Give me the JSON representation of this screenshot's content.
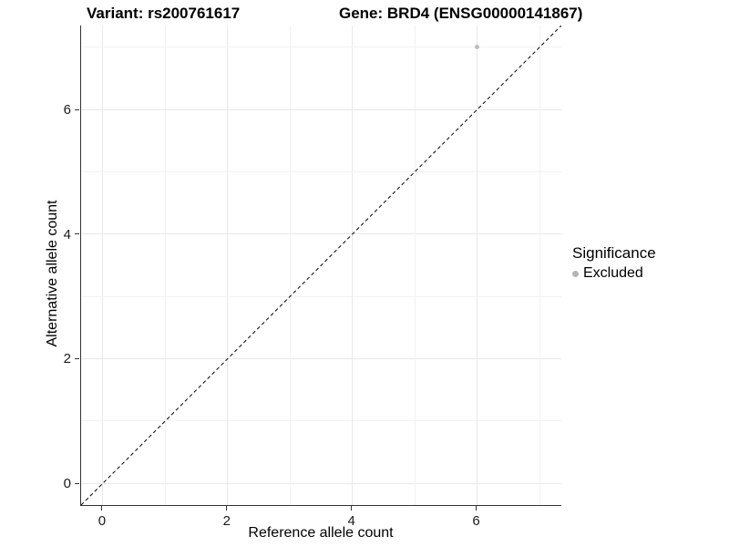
{
  "chart_data": {
    "type": "scatter",
    "title_left": "Variant: rs200761617",
    "title_right": "Gene: BRD4 (ENSG00000141867)",
    "xlabel": "Reference allele count",
    "ylabel": "Alternative allele count",
    "xlim": [
      -0.35,
      7.35
    ],
    "ylim": [
      -0.35,
      7.35
    ],
    "x_ticks": [
      0,
      2,
      4,
      6
    ],
    "y_ticks": [
      0,
      2,
      4,
      6
    ],
    "grid_values": [
      0,
      1,
      2,
      3,
      4,
      5,
      6,
      7
    ],
    "grid": "major at even integers, minor at odd integers, horizontal and vertical",
    "points": [
      {
        "x": 6,
        "y": 7,
        "series": "Excluded"
      }
    ],
    "reference_line": {
      "style": "dashed",
      "equation": "y = x",
      "color": "#000000"
    },
    "legend": {
      "title": "Significance",
      "position": "right",
      "entries": [
        {
          "label": "Excluded",
          "color": "#b5b5b5"
        }
      ]
    },
    "colors": {
      "point": "#bdbdbd",
      "grid_major": "#e8e8e8",
      "grid_minor": "#f2f2f2",
      "axis_line": "#333333",
      "text": "#000000"
    }
  }
}
